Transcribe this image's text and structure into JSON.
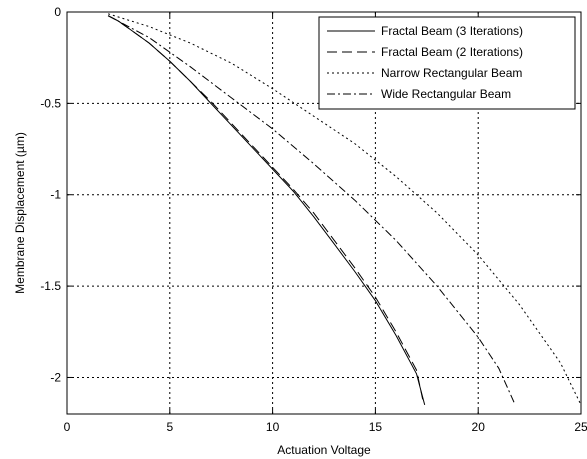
{
  "chart_data": {
    "type": "line",
    "xlabel": "Actuation Voltage",
    "ylabel": "Membrane Displacement (µm)",
    "xlim": [
      0,
      25
    ],
    "ylim": [
      -2.2,
      0
    ],
    "xticks": [
      0,
      5,
      10,
      15,
      20,
      25
    ],
    "yticks": [
      0,
      -0.5,
      -1,
      -1.5,
      -2
    ],
    "xtick_labels": [
      "0",
      "5",
      "10",
      "15",
      "20",
      "25"
    ],
    "ytick_labels": [
      "0",
      "-0.5",
      "-1",
      "-1.5",
      "-2"
    ],
    "grid": true,
    "legend_position": "top-right",
    "series": [
      {
        "name": "Fractal Beam (3 Iterations)",
        "style": "solid",
        "x": [
          2,
          2.5,
          3,
          4,
          5,
          6,
          7,
          8,
          9,
          10,
          11,
          12,
          13,
          14,
          15,
          16,
          17,
          17.4
        ],
        "y": [
          -0.02,
          -0.05,
          -0.09,
          -0.17,
          -0.27,
          -0.38,
          -0.5,
          -0.62,
          -0.74,
          -0.86,
          -0.98,
          -1.12,
          -1.27,
          -1.42,
          -1.58,
          -1.77,
          -1.98,
          -2.15
        ]
      },
      {
        "name": "Fractal Beam (2 Iterations)",
        "style": "dashed",
        "x": [
          2,
          2.5,
          3,
          4,
          5,
          6,
          7,
          8,
          9,
          10,
          11,
          12,
          13,
          14,
          15,
          16,
          17,
          17.3
        ],
        "y": [
          -0.02,
          -0.05,
          -0.09,
          -0.17,
          -0.27,
          -0.38,
          -0.49,
          -0.61,
          -0.73,
          -0.85,
          -0.97,
          -1.1,
          -1.25,
          -1.4,
          -1.56,
          -1.75,
          -1.96,
          -2.12
        ]
      },
      {
        "name": "Narrow Rectangular Beam",
        "style": "dotted",
        "x": [
          2,
          4,
          6,
          8,
          10,
          12,
          14,
          16,
          18,
          20,
          22,
          24,
          25
        ],
        "y": [
          -0.01,
          -0.08,
          -0.17,
          -0.28,
          -0.42,
          -0.57,
          -0.72,
          -0.9,
          -1.1,
          -1.33,
          -1.6,
          -1.92,
          -2.15
        ]
      },
      {
        "name": "Wide Rectangular Beam",
        "style": "dashdot",
        "x": [
          2,
          4,
          6,
          8,
          10,
          12,
          14,
          16,
          18,
          20,
          21,
          21.8
        ],
        "y": [
          -0.02,
          -0.14,
          -0.3,
          -0.47,
          -0.64,
          -0.83,
          -1.03,
          -1.25,
          -1.5,
          -1.78,
          -1.95,
          -2.15
        ]
      }
    ]
  }
}
